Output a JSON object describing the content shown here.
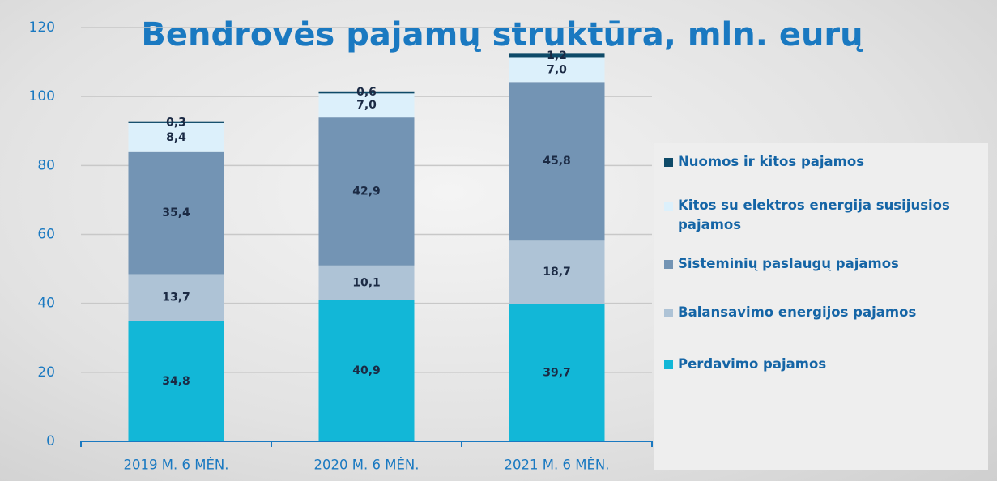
{
  "chart_data": {
    "type": "stacked_bar",
    "title": "Bendrovės pajamų struktūra, mln. eurų",
    "categories": [
      "2019 M. 6 MĖN.",
      "2020 M. 6 MĖN.",
      "2021 M. 6 MĖN."
    ],
    "series": [
      {
        "name": "Perdavimo pajamos",
        "color": "#12b7d7",
        "values": [
          34.8,
          40.9,
          39.7
        ],
        "value_labels": [
          "34,8",
          "40,9",
          "39,7"
        ]
      },
      {
        "name": "Balansavimo energijos pajamos",
        "color": "#aec3d6",
        "values": [
          13.7,
          10.1,
          18.7
        ],
        "value_labels": [
          "13,7",
          "10,1",
          "18,7"
        ]
      },
      {
        "name": "Sisteminių paslaugų pajamos",
        "color": "#7394b4",
        "values": [
          35.4,
          42.9,
          45.8
        ],
        "value_labels": [
          "35,4",
          "42,9",
          "45,8"
        ]
      },
      {
        "name": "Kitos su elektros energija susijusios pajamos",
        "color": "#dcf0fb",
        "values": [
          8.4,
          7.0,
          7.0
        ],
        "value_labels": [
          "8,4",
          "7,0",
          "7,0"
        ]
      },
      {
        "name": "Nuomos ir kitos pajamos",
        "color": "#0e4a68",
        "values": [
          0.3,
          0.6,
          1.2
        ],
        "value_labels": [
          "0,3",
          "0,6",
          "1,2"
        ]
      }
    ],
    "ylim": [
      0,
      120
    ],
    "yticks": [
      0,
      20,
      40,
      60,
      80,
      100,
      120
    ],
    "grid": true,
    "legend": "right"
  }
}
